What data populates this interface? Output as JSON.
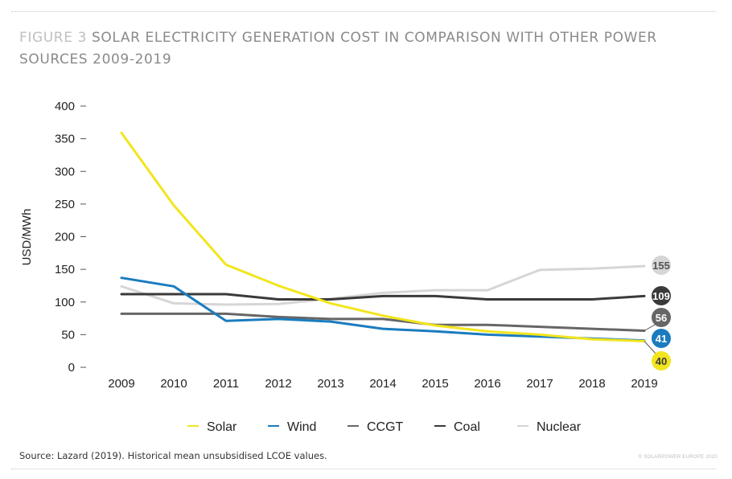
{
  "header": {
    "figure_label": "FIGURE 3",
    "title": "SOLAR ELECTRICITY GENERATION COST IN COMPARISON WITH OTHER POWER SOURCES 2009-2019"
  },
  "footer": {
    "source": "Source: Lazard (2019). Historical mean unsubsidised LCOE values.",
    "copyright": "© SOLARPOWER EUROPE 2020"
  },
  "chart_data": {
    "type": "line",
    "title": "Solar electricity generation cost in comparison with other power sources 2009-2019",
    "xlabel": "",
    "ylabel": "USD/MWh",
    "ylim": [
      0,
      400
    ],
    "yticks": [
      0,
      50,
      100,
      150,
      200,
      250,
      300,
      350,
      400
    ],
    "grid": false,
    "legend_position": "bottom",
    "x": [
      "2009",
      "2010",
      "2011",
      "2012",
      "2013",
      "2014",
      "2015",
      "2016",
      "2017",
      "2018",
      "2019"
    ],
    "series": [
      {
        "name": "Solar",
        "color": "#f2e51d",
        "label_text_color": "#3a3a3a",
        "values": [
          359,
          248,
          157,
          125,
          98,
          79,
          64,
          55,
          50,
          43,
          40
        ],
        "end_label": "40"
      },
      {
        "name": "Wind",
        "color": "#1a7cbf",
        "label_text_color": "#ffffff",
        "values": [
          137,
          124,
          71,
          74,
          70,
          59,
          55,
          50,
          47,
          44,
          41
        ],
        "end_label": "41"
      },
      {
        "name": "CCGT",
        "color": "#666666",
        "label_text_color": "#ffffff",
        "values": [
          82,
          82,
          82,
          77,
          74,
          74,
          65,
          65,
          62,
          59,
          56
        ],
        "end_label": "56"
      },
      {
        "name": "Coal",
        "color": "#3a3a3a",
        "label_text_color": "#ffffff",
        "values": [
          112,
          112,
          112,
          104,
          104,
          109,
          109,
          104,
          104,
          104,
          109
        ],
        "end_label": "109"
      },
      {
        "name": "Nuclear",
        "color": "#d6d6d6",
        "label_text_color": "#555555",
        "values": [
          124,
          98,
          96,
          97,
          105,
          114,
          118,
          118,
          149,
          151,
          155
        ],
        "end_label": "155"
      }
    ]
  }
}
